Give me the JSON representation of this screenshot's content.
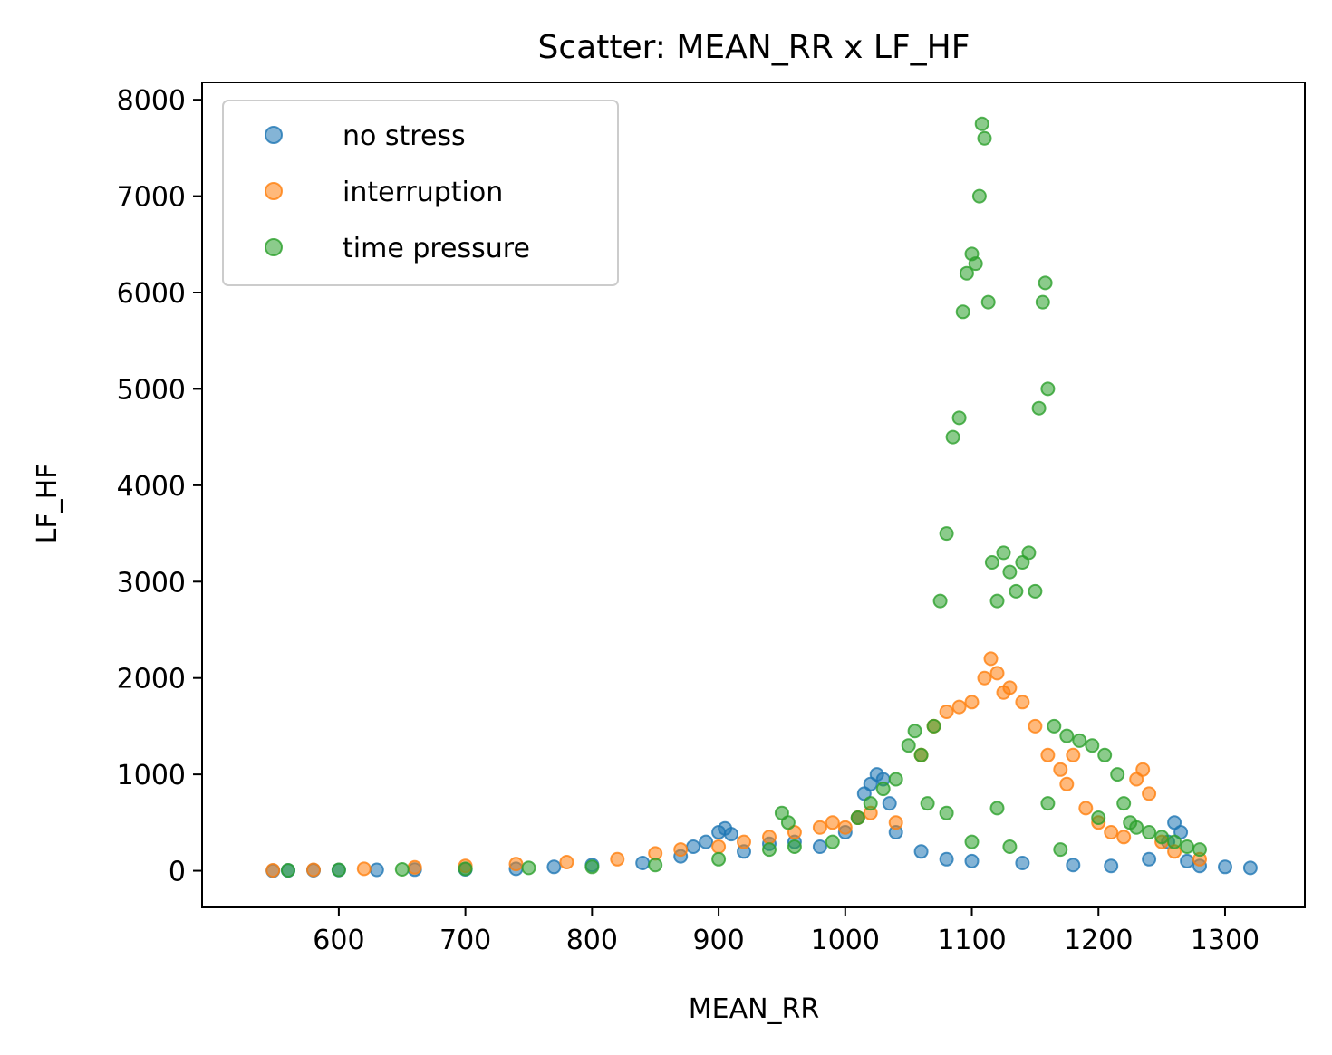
{
  "chart_data": {
    "type": "scatter",
    "title": "Scatter: MEAN_RR x LF_HF",
    "xlabel": "MEAN_RR",
    "ylabel": "LF_HF",
    "xlim": [
      492,
      1363
    ],
    "ylim": [
      -380,
      8180
    ],
    "xticks": [
      600,
      700,
      800,
      900,
      1000,
      1100,
      1200,
      1300
    ],
    "yticks": [
      0,
      1000,
      2000,
      3000,
      4000,
      5000,
      6000,
      7000,
      8000
    ],
    "grid": false,
    "legend_position": "top-left",
    "series": [
      {
        "name": "no stress",
        "color": "#1f77b4",
        "points": [
          [
            548,
            0
          ],
          [
            560,
            3
          ],
          [
            580,
            5
          ],
          [
            600,
            8
          ],
          [
            630,
            10
          ],
          [
            660,
            12
          ],
          [
            700,
            15
          ],
          [
            740,
            20
          ],
          [
            770,
            40
          ],
          [
            800,
            60
          ],
          [
            840,
            80
          ],
          [
            870,
            150
          ],
          [
            880,
            250
          ],
          [
            890,
            300
          ],
          [
            900,
            400
          ],
          [
            905,
            440
          ],
          [
            910,
            380
          ],
          [
            920,
            200
          ],
          [
            940,
            280
          ],
          [
            960,
            300
          ],
          [
            980,
            250
          ],
          [
            1000,
            400
          ],
          [
            1010,
            550
          ],
          [
            1015,
            800
          ],
          [
            1020,
            900
          ],
          [
            1025,
            1000
          ],
          [
            1030,
            950
          ],
          [
            1035,
            700
          ],
          [
            1040,
            400
          ],
          [
            1060,
            200
          ],
          [
            1080,
            120
          ],
          [
            1100,
            100
          ],
          [
            1140,
            80
          ],
          [
            1180,
            60
          ],
          [
            1210,
            50
          ],
          [
            1240,
            120
          ],
          [
            1255,
            300
          ],
          [
            1260,
            500
          ],
          [
            1265,
            400
          ],
          [
            1270,
            100
          ],
          [
            1280,
            50
          ],
          [
            1300,
            40
          ],
          [
            1320,
            30
          ]
        ]
      },
      {
        "name": "interruption",
        "color": "#ff7f0e",
        "points": [
          [
            548,
            5
          ],
          [
            580,
            10
          ],
          [
            620,
            20
          ],
          [
            660,
            35
          ],
          [
            700,
            50
          ],
          [
            740,
            70
          ],
          [
            780,
            90
          ],
          [
            820,
            120
          ],
          [
            850,
            180
          ],
          [
            870,
            220
          ],
          [
            900,
            250
          ],
          [
            920,
            300
          ],
          [
            940,
            350
          ],
          [
            960,
            400
          ],
          [
            980,
            450
          ],
          [
            990,
            500
          ],
          [
            1000,
            450
          ],
          [
            1010,
            550
          ],
          [
            1020,
            600
          ],
          [
            1040,
            500
          ],
          [
            1060,
            1200
          ],
          [
            1070,
            1500
          ],
          [
            1080,
            1650
          ],
          [
            1090,
            1700
          ],
          [
            1100,
            1750
          ],
          [
            1110,
            2000
          ],
          [
            1115,
            2200
          ],
          [
            1120,
            2050
          ],
          [
            1125,
            1850
          ],
          [
            1130,
            1900
          ],
          [
            1140,
            1750
          ],
          [
            1150,
            1500
          ],
          [
            1160,
            1200
          ],
          [
            1170,
            1050
          ],
          [
            1175,
            900
          ],
          [
            1180,
            1200
          ],
          [
            1190,
            650
          ],
          [
            1200,
            500
          ],
          [
            1210,
            400
          ],
          [
            1220,
            350
          ],
          [
            1230,
            950
          ],
          [
            1235,
            1050
          ],
          [
            1240,
            800
          ],
          [
            1250,
            300
          ],
          [
            1260,
            200
          ],
          [
            1280,
            120
          ]
        ]
      },
      {
        "name": "time pressure",
        "color": "#2ca02c",
        "points": [
          [
            560,
            5
          ],
          [
            600,
            10
          ],
          [
            650,
            15
          ],
          [
            700,
            20
          ],
          [
            750,
            30
          ],
          [
            800,
            40
          ],
          [
            850,
            60
          ],
          [
            900,
            120
          ],
          [
            940,
            220
          ],
          [
            950,
            600
          ],
          [
            955,
            500
          ],
          [
            960,
            250
          ],
          [
            990,
            300
          ],
          [
            1010,
            550
          ],
          [
            1020,
            700
          ],
          [
            1030,
            850
          ],
          [
            1040,
            950
          ],
          [
            1050,
            1300
          ],
          [
            1055,
            1450
          ],
          [
            1060,
            1200
          ],
          [
            1065,
            700
          ],
          [
            1070,
            1500
          ],
          [
            1075,
            2800
          ],
          [
            1080,
            3500
          ],
          [
            1085,
            4500
          ],
          [
            1090,
            4700
          ],
          [
            1093,
            5800
          ],
          [
            1096,
            6200
          ],
          [
            1100,
            6400
          ],
          [
            1103,
            6300
          ],
          [
            1106,
            7000
          ],
          [
            1108,
            7750
          ],
          [
            1110,
            7600
          ],
          [
            1113,
            5900
          ],
          [
            1116,
            3200
          ],
          [
            1120,
            2800
          ],
          [
            1125,
            3300
          ],
          [
            1130,
            3100
          ],
          [
            1135,
            2900
          ],
          [
            1140,
            3200
          ],
          [
            1145,
            3300
          ],
          [
            1150,
            2900
          ],
          [
            1153,
            4800
          ],
          [
            1156,
            5900
          ],
          [
            1158,
            6100
          ],
          [
            1160,
            5000
          ],
          [
            1165,
            1500
          ],
          [
            1175,
            1400
          ],
          [
            1185,
            1350
          ],
          [
            1195,
            1300
          ],
          [
            1205,
            1200
          ],
          [
            1215,
            1000
          ],
          [
            1220,
            700
          ],
          [
            1225,
            500
          ],
          [
            1230,
            450
          ],
          [
            1240,
            400
          ],
          [
            1250,
            350
          ],
          [
            1260,
            300
          ],
          [
            1270,
            250
          ],
          [
            1280,
            220
          ],
          [
            1130,
            250
          ],
          [
            1170,
            220
          ],
          [
            1100,
            300
          ],
          [
            1080,
            600
          ],
          [
            1120,
            650
          ],
          [
            1160,
            700
          ],
          [
            1200,
            550
          ]
        ]
      }
    ]
  }
}
